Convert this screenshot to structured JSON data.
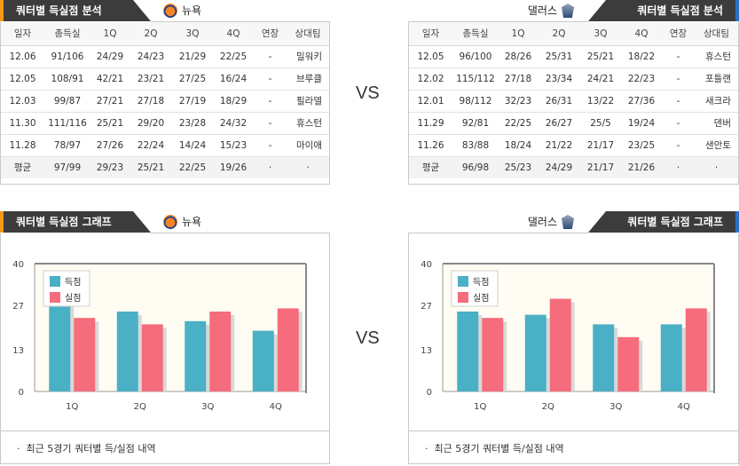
{
  "headers": {
    "analysis_title": "쿼터별 득실점 분석",
    "graph_title": "쿼터별 득실점 그래프",
    "home_team": "뉴욕",
    "away_team": "댈러스",
    "vs_label": "VS"
  },
  "table": {
    "columns": [
      "일자",
      "총득실",
      "1Q",
      "2Q",
      "3Q",
      "4Q",
      "연장",
      "상대팀"
    ],
    "left_rows": [
      [
        "12.06",
        "91/106",
        "24/29",
        "24/23",
        "21/29",
        "22/25",
        "-",
        "밀워키"
      ],
      [
        "12.05",
        "108/91",
        "42/21",
        "23/21",
        "27/25",
        "16/24",
        "-",
        "브루클"
      ],
      [
        "12.03",
        "99/87",
        "27/21",
        "27/18",
        "27/19",
        "18/29",
        "-",
        "필라델"
      ],
      [
        "11.30",
        "111/116",
        "25/21",
        "29/20",
        "23/28",
        "24/32",
        "-",
        "휴스턴"
      ],
      [
        "11.28",
        "78/97",
        "27/26",
        "22/24",
        "14/24",
        "15/23",
        "-",
        "마이애"
      ]
    ],
    "left_avg": [
      "평균",
      "97/99",
      "29/23",
      "25/21",
      "22/25",
      "19/26",
      "·",
      "·"
    ],
    "right_rows": [
      [
        "12.05",
        "96/100",
        "28/26",
        "25/31",
        "25/21",
        "18/22",
        "-",
        "휴스턴"
      ],
      [
        "12.02",
        "115/112",
        "27/18",
        "23/34",
        "24/21",
        "22/23",
        "-",
        "포틀랜"
      ],
      [
        "12.01",
        "98/112",
        "32/23",
        "26/31",
        "13/22",
        "27/36",
        "-",
        "새크라"
      ],
      [
        "11.29",
        "92/81",
        "22/25",
        "26/27",
        "25/5",
        "19/24",
        "-",
        "덴버"
      ],
      [
        "11.26",
        "83/88",
        "18/24",
        "21/22",
        "21/17",
        "23/25",
        "-",
        "샌안토"
      ]
    ],
    "right_avg": [
      "평균",
      "96/98",
      "25/23",
      "24/29",
      "21/17",
      "21/26",
      "·",
      "·"
    ]
  },
  "chart_data": [
    {
      "type": "bar",
      "categories": [
        "1Q",
        "2Q",
        "3Q",
        "4Q"
      ],
      "series": [
        {
          "name": "득점",
          "values": [
            29,
            25,
            22,
            19
          ],
          "color": "#4ab0c6"
        },
        {
          "name": "실점",
          "values": [
            23,
            21,
            25,
            26
          ],
          "color": "#f56c7c"
        }
      ],
      "ylim": [
        0,
        40
      ],
      "yticks": [
        "0",
        "13",
        "27",
        "40"
      ],
      "legend": "top-left",
      "grid": false
    },
    {
      "type": "bar",
      "categories": [
        "1Q",
        "2Q",
        "3Q",
        "4Q"
      ],
      "series": [
        {
          "name": "득점",
          "values": [
            25,
            24,
            21,
            21
          ],
          "color": "#4ab0c6"
        },
        {
          "name": "실점",
          "values": [
            23,
            29,
            17,
            26
          ],
          "color": "#f56c7c"
        }
      ],
      "ylim": [
        0,
        40
      ],
      "yticks": [
        "0",
        "13",
        "27",
        "40"
      ],
      "legend": "top-left",
      "grid": false
    }
  ],
  "footer_note": "최근 5경기 쿼터별 득/실점 내역",
  "footer_bullet": "·"
}
